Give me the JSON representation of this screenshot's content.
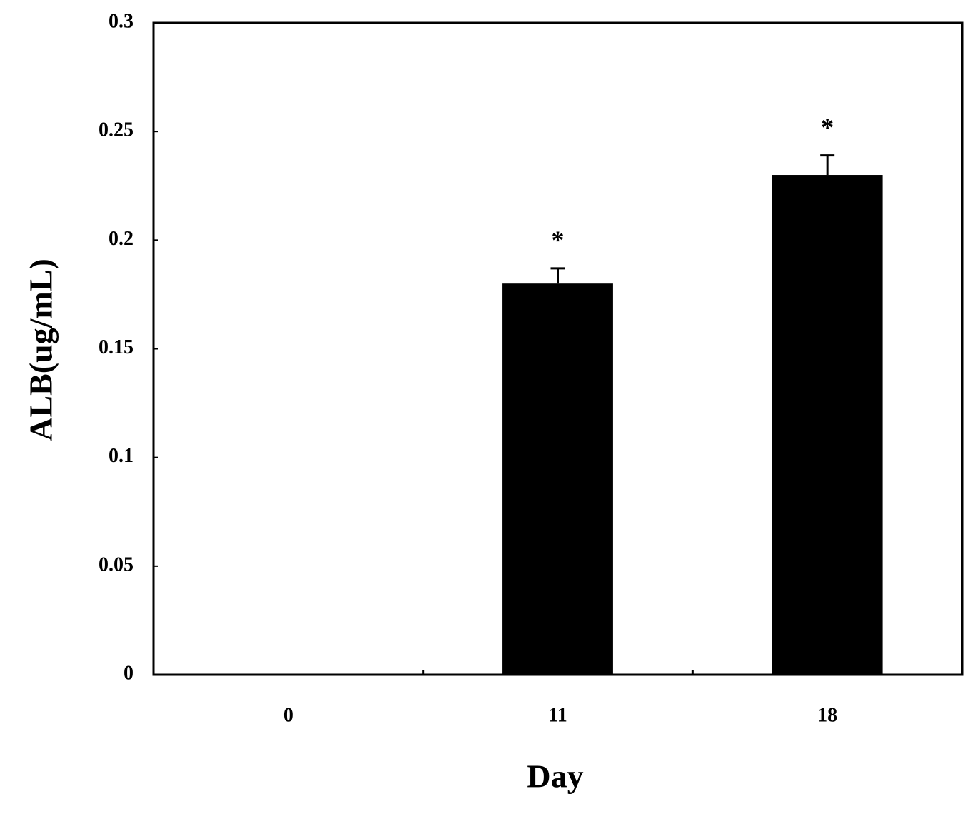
{
  "chart_data": {
    "type": "bar",
    "categories": [
      "0",
      "11",
      "18"
    ],
    "values": [
      0,
      0.18,
      0.23
    ],
    "errors": [
      null,
      0.007,
      0.009
    ],
    "significance": [
      null,
      "*",
      "*"
    ],
    "color": "#000000",
    "xlabel": "Day",
    "ylabel": "ALB(ug/mL)",
    "ylim": [
      0,
      0.3
    ],
    "yticks": [
      0,
      0.05,
      0.1,
      0.15,
      0.2,
      0.25,
      0.3
    ],
    "grid": false
  }
}
